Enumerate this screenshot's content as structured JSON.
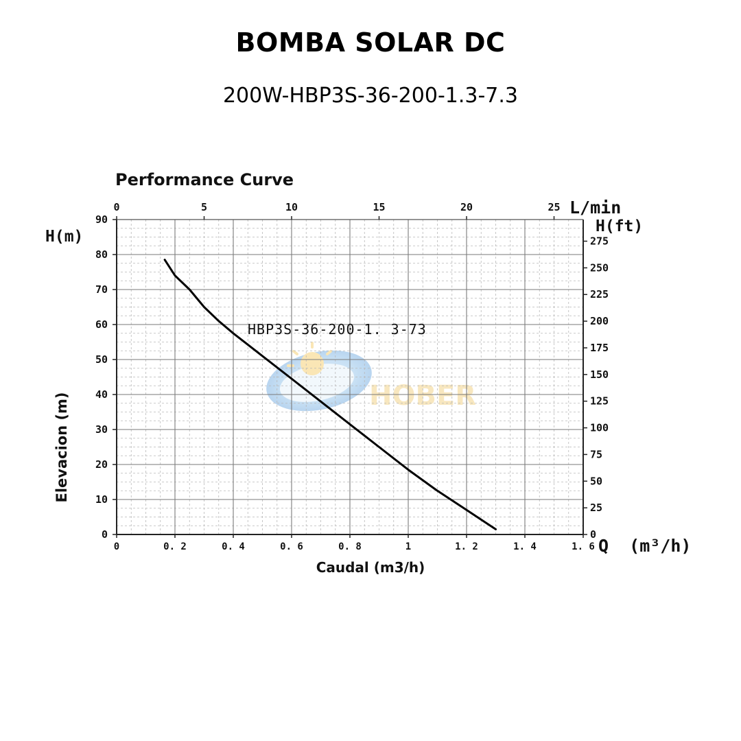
{
  "header": {
    "title": "BOMBA SOLAR DC",
    "subtitle": "200W-HBP3S-36-200-1.3-7.3"
  },
  "chart_data": {
    "type": "line",
    "title": "Performance Curve",
    "xlabel": "Caudal (m3/h)",
    "ylabel": "Elevacion (m)",
    "x_axis_unit": "Q  (m³/h)",
    "left_axis_unit": "H(m)",
    "right_axis_unit": "H(ft)",
    "top_axis_unit": "L/min",
    "xlim": [
      0,
      1.6
    ],
    "ylim": [
      0,
      90
    ],
    "x_ticks": [
      "0",
      "0. 2",
      "0. 4",
      "0. 6",
      "0. 8",
      "1",
      "1. 2",
      "1. 4",
      "1. 6"
    ],
    "y_ticks": [
      "0",
      "10",
      "20",
      "30",
      "40",
      "50",
      "60",
      "70",
      "80",
      "90"
    ],
    "top_ticks": [
      "0",
      "5",
      "10",
      "15",
      "20",
      "25"
    ],
    "right_ticks": [
      "0",
      "25",
      "50",
      "75",
      "100",
      "125",
      "150",
      "175",
      "200",
      "225",
      "250",
      "275"
    ],
    "grid": true,
    "watermark": "HOBER",
    "series": [
      {
        "name": "HBP3S-36-200-1. 3-73",
        "color": "#000000",
        "x": [
          0.165,
          0.2,
          0.25,
          0.3,
          0.35,
          0.4,
          0.5,
          0.6,
          0.7,
          0.8,
          0.9,
          1.0,
          1.1,
          1.2,
          1.3
        ],
        "y": [
          78.5,
          74,
          70,
          65,
          61,
          57.5,
          51,
          44.5,
          38,
          31.5,
          25,
          18.5,
          12.5,
          7,
          1.5
        ]
      }
    ]
  }
}
